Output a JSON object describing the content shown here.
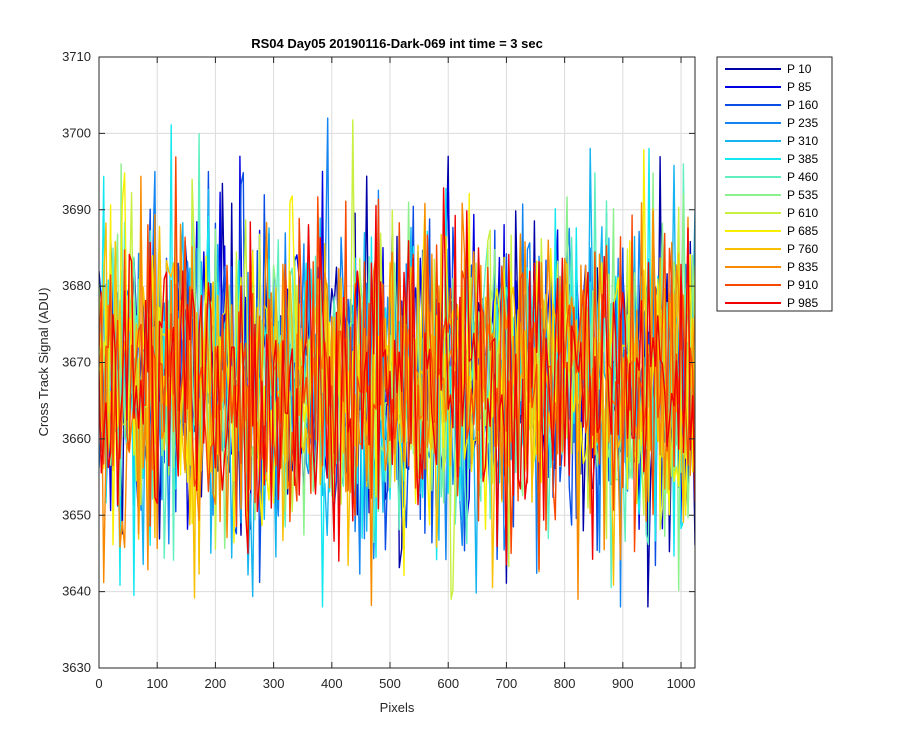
{
  "chart_data": {
    "type": "line",
    "title": "RS04 Day05 20190116-Dark-069 int time = 3 sec",
    "xlabel": "Pixels",
    "ylabel": "Cross Track Signal (ADU)",
    "xlim": [
      0,
      1024
    ],
    "ylim": [
      3630,
      3710
    ],
    "x_ticks": [
      0,
      100,
      200,
      300,
      400,
      500,
      600,
      700,
      800,
      900,
      1000
    ],
    "y_ticks": [
      3630,
      3640,
      3650,
      3660,
      3670,
      3680,
      3690,
      3700,
      3710
    ],
    "grid": true,
    "legend_position": "outside-top-right",
    "series_summary": {
      "mean": 3668,
      "typical_range": [
        3655,
        3683
      ],
      "observed_min": 3638,
      "observed_max": 3702,
      "notable_peaks": [
        {
          "series": "P 235",
          "x": 393,
          "y": 3702
        },
        {
          "series": "P 385",
          "x": 945,
          "y": 3698
        },
        {
          "series": "P 85",
          "x": 242,
          "y": 3697
        },
        {
          "series": "P 535",
          "x": 38,
          "y": 3696
        },
        {
          "series": "P 160",
          "x": 188,
          "y": 3695
        },
        {
          "series": "P 10",
          "x": 943,
          "y": 3638
        },
        {
          "series": "P 610",
          "x": 605,
          "y": 3639
        },
        {
          "series": "P 835",
          "x": 823,
          "y": 3639
        }
      ]
    },
    "series": [
      {
        "name": "P 10",
        "color": "#0000a8"
      },
      {
        "name": "P 85",
        "color": "#0000e0"
      },
      {
        "name": "P 160",
        "color": "#0a4ee6"
      },
      {
        "name": "P 235",
        "color": "#1384f0"
      },
      {
        "name": "P 310",
        "color": "#13b4f0"
      },
      {
        "name": "P 385",
        "color": "#13e8f0"
      },
      {
        "name": "P 460",
        "color": "#60f0c0"
      },
      {
        "name": "P 535",
        "color": "#8cf08c"
      },
      {
        "name": "P 610",
        "color": "#c8f040"
      },
      {
        "name": "P 685",
        "color": "#f8f000"
      },
      {
        "name": "P 760",
        "color": "#f8c000"
      },
      {
        "name": "P 835",
        "color": "#f88800"
      },
      {
        "name": "P 910",
        "color": "#f84800"
      },
      {
        "name": "P 985",
        "color": "#f00000"
      }
    ]
  }
}
